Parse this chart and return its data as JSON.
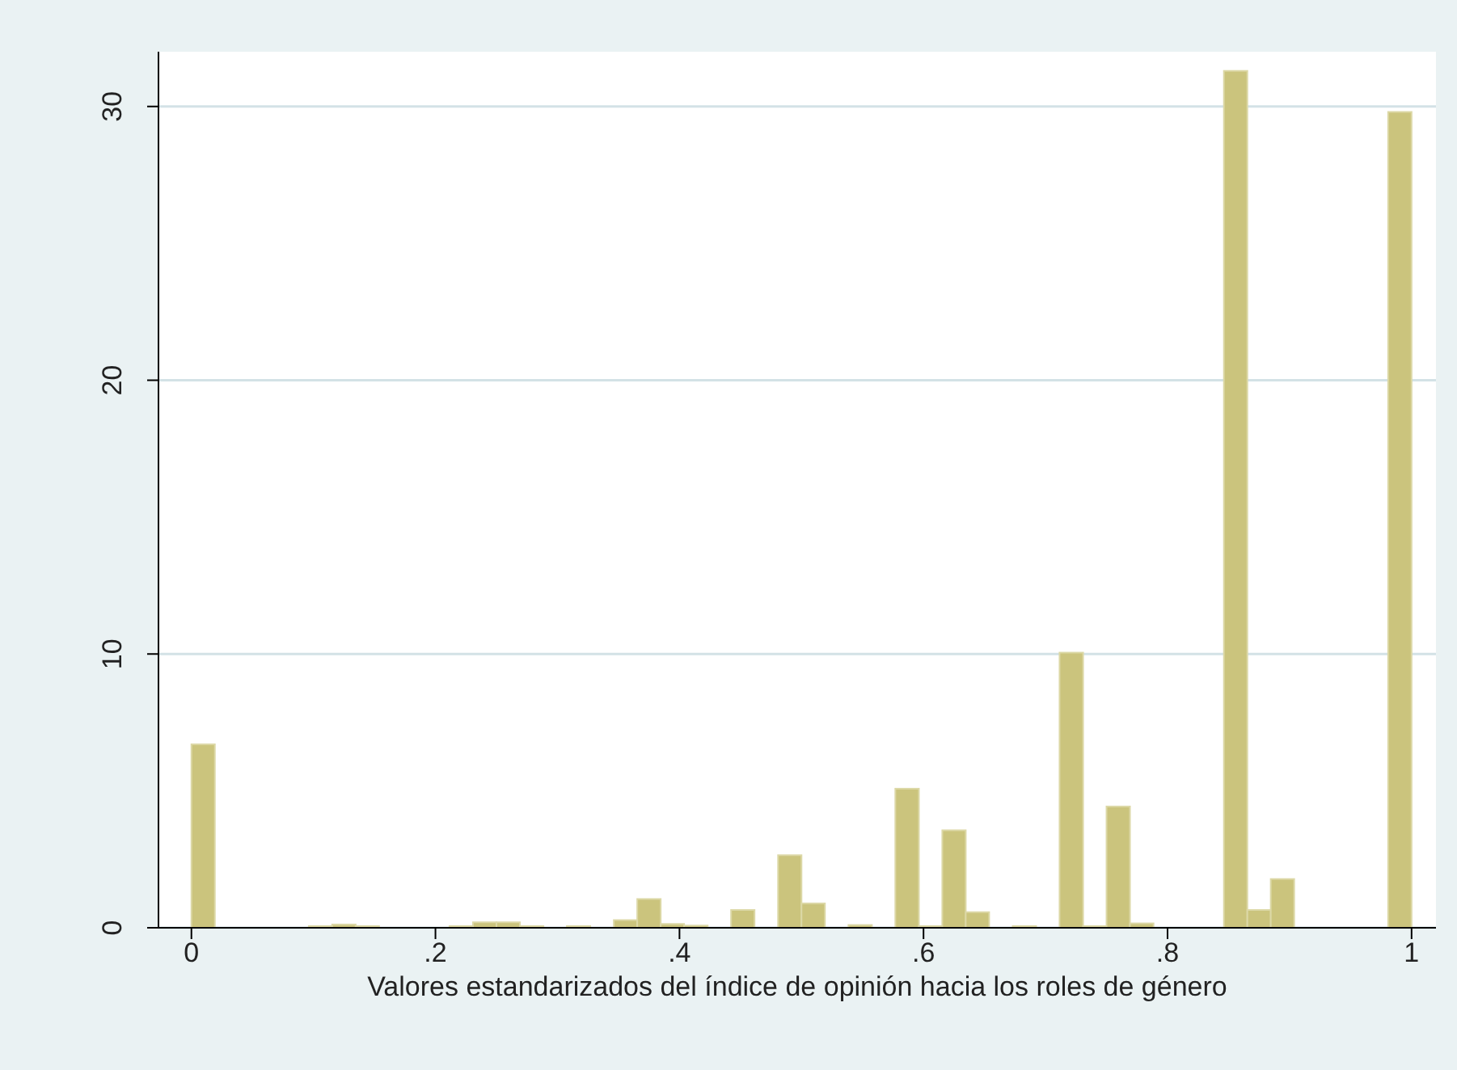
{
  "chart_data": {
    "type": "histogram",
    "xlabel": "Valores estandarizados del índice de opinión hacia los roles de género",
    "bins": [
      0,
      0.0192,
      0.0385,
      0.0577,
      0.0769,
      0.0962,
      0.1154,
      0.1346,
      0.1538,
      0.1731,
      0.1923,
      0.2115,
      0.2308,
      0.25,
      0.2692,
      0.2885,
      0.3077,
      0.3269,
      0.3462,
      0.3654,
      0.3846,
      0.4038,
      0.4231,
      0.4423,
      0.4615,
      0.4808,
      0.5,
      0.5192,
      0.5385,
      0.5577,
      0.5769,
      0.5962,
      0.6154,
      0.6346,
      0.6538,
      0.6731,
      0.6923,
      0.7115,
      0.7308,
      0.75,
      0.7692,
      0.7885,
      0.8077,
      0.8269,
      0.8462,
      0.8654,
      0.8846,
      0.9038,
      0.9231,
      0.9423,
      0.9615,
      0.9808,
      1
    ],
    "values": [
      6.7,
      0,
      0,
      0,
      0,
      0.06,
      0.12,
      0.06,
      0,
      0,
      0,
      0.06,
      0.2,
      0.2,
      0.06,
      0,
      0.06,
      0,
      0.28,
      1.05,
      0.14,
      0.08,
      0,
      0.65,
      0,
      2.65,
      0.89,
      0,
      0.1,
      0,
      5.08,
      0.06,
      3.56,
      0.57,
      0,
      0.06,
      0,
      10.05,
      0.06,
      4.43,
      0.16,
      0,
      0,
      0,
      31.3,
      0.65,
      1.78,
      0,
      0,
      0,
      0,
      29.8
    ],
    "color": "#cbc47d",
    "xlim": [
      -0.027,
      1.02
    ],
    "xticks": [
      0,
      {
        "value": 0.2,
        "label": ".2"
      },
      {
        "value": 0.4,
        "label": ".4"
      },
      {
        "value": 0.6,
        "label": ".6"
      },
      {
        "value": 0.8,
        "label": ".8"
      },
      1
    ],
    "ylim": [
      0,
      32
    ],
    "yticks": [
      0,
      10,
      20,
      30
    ],
    "grid": "y"
  }
}
